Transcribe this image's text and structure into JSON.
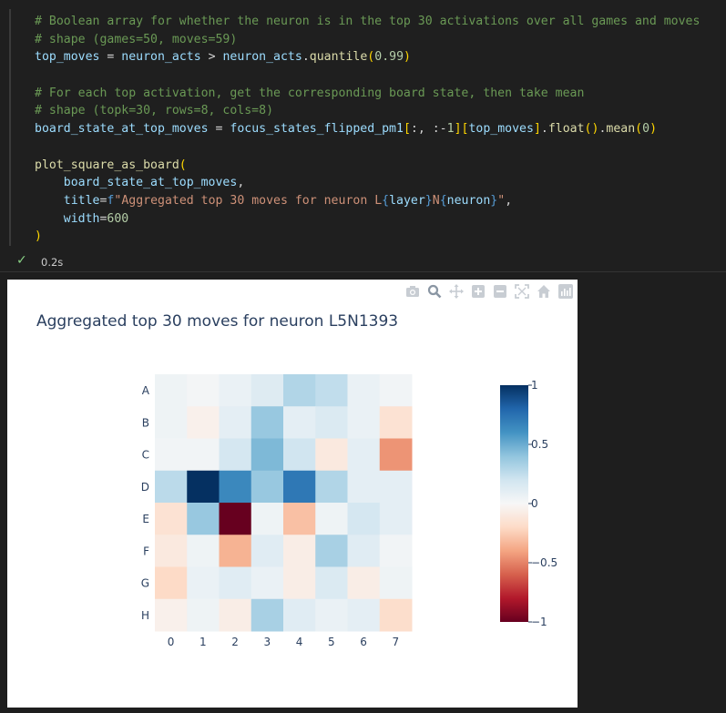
{
  "code": {
    "lines": [
      [
        [
          "c",
          "# Boolean array for whether the neuron is in the top 30 activations over all games and moves"
        ]
      ],
      [
        [
          "c",
          "# shape (games=50, moves=59)"
        ]
      ],
      [
        [
          "v",
          "top_moves"
        ],
        [
          "op",
          " = "
        ],
        [
          "v",
          "neuron_acts"
        ],
        [
          "op",
          " > "
        ],
        [
          "v",
          "neuron_acts"
        ],
        [
          "op",
          "."
        ],
        [
          "f",
          "quantile"
        ],
        [
          "p1",
          "("
        ],
        [
          "n",
          "0.99"
        ],
        [
          "p1",
          ")"
        ]
      ],
      [],
      [
        [
          "c",
          "# For each top activation, get the corresponding board state, then take mean"
        ]
      ],
      [
        [
          "c",
          "# shape (topk=30, rows=8, cols=8)"
        ]
      ],
      [
        [
          "v",
          "board_state_at_top_moves"
        ],
        [
          "op",
          " = "
        ],
        [
          "v",
          "focus_states_flipped_pm1"
        ],
        [
          "p1",
          "["
        ],
        [
          "op",
          ":, :-"
        ],
        [
          "n",
          "1"
        ],
        [
          "p1",
          "]"
        ],
        [
          "p1",
          "["
        ],
        [
          "v",
          "top_moves"
        ],
        [
          "p1",
          "]"
        ],
        [
          "op",
          "."
        ],
        [
          "f",
          "float"
        ],
        [
          "p1",
          "()"
        ],
        [
          "op",
          "."
        ],
        [
          "f",
          "mean"
        ],
        [
          "p1",
          "("
        ],
        [
          "n",
          "0"
        ],
        [
          "p1",
          ")"
        ]
      ],
      [],
      [
        [
          "f",
          "plot_square_as_board"
        ],
        [
          "p1",
          "("
        ]
      ],
      [
        [
          "op",
          "    "
        ],
        [
          "v",
          "board_state_at_top_moves"
        ],
        [
          "op",
          ","
        ]
      ],
      [
        [
          "op",
          "    "
        ],
        [
          "v",
          "title"
        ],
        [
          "op",
          "="
        ],
        [
          "k",
          "f"
        ],
        [
          "s",
          "\"Aggregated top 30 moves for neuron L"
        ],
        [
          "k",
          "{"
        ],
        [
          "v",
          "layer"
        ],
        [
          "k",
          "}"
        ],
        [
          "s",
          "N"
        ],
        [
          "k",
          "{"
        ],
        [
          "v",
          "neuron"
        ],
        [
          "k",
          "}"
        ],
        [
          "s",
          "\""
        ],
        [
          "op",
          ","
        ]
      ],
      [
        [
          "op",
          "    "
        ],
        [
          "v",
          "width"
        ],
        [
          "op",
          "="
        ],
        [
          "n",
          "600"
        ]
      ],
      [
        [
          "p1",
          ")"
        ]
      ]
    ]
  },
  "cell_status": {
    "check": "✓",
    "time": "0.2s"
  },
  "toolbar_icons": [
    "camera-icon",
    "zoom-icon",
    "pan-icon",
    "zoom-in-icon",
    "zoom-out-icon",
    "autoscale-icon",
    "reset-axes-icon",
    "plotly-logo-icon"
  ],
  "chart_data": {
    "type": "heatmap",
    "title": "Aggregated top 30 moves for neuron L5N1393",
    "rows": [
      "A",
      "B",
      "C",
      "D",
      "E",
      "F",
      "G",
      "H"
    ],
    "cols": [
      "0",
      "1",
      "2",
      "3",
      "4",
      "5",
      "6",
      "7"
    ],
    "values": [
      [
        0.05,
        0.02,
        0.07,
        0.13,
        0.3,
        0.25,
        0.07,
        0.03
      ],
      [
        0.05,
        -0.05,
        0.1,
        0.38,
        0.1,
        0.15,
        0.07,
        -0.15
      ],
      [
        0.03,
        0.03,
        0.18,
        0.45,
        0.2,
        -0.1,
        0.1,
        -0.45
      ],
      [
        0.27,
        1.0,
        0.65,
        0.38,
        0.72,
        0.3,
        0.1,
        0.1
      ],
      [
        -0.15,
        0.38,
        -1.0,
        0.05,
        -0.3,
        0.05,
        0.18,
        0.1
      ],
      [
        -0.1,
        0.05,
        -0.35,
        0.12,
        -0.07,
        0.33,
        0.12,
        0.03
      ],
      [
        -0.2,
        0.07,
        0.12,
        0.07,
        -0.07,
        0.15,
        -0.07,
        0.05
      ],
      [
        -0.05,
        0.05,
        -0.07,
        0.33,
        0.12,
        0.07,
        0.1,
        -0.18
      ]
    ],
    "zmin": -1,
    "zmax": 1,
    "colorscale": "RdBu",
    "colorbar_ticks": [
      {
        "value": 1,
        "label": "1"
      },
      {
        "value": 0.5,
        "label": "0.5"
      },
      {
        "value": 0,
        "label": "0"
      },
      {
        "value": -0.5,
        "label": "−0.5"
      },
      {
        "value": -1,
        "label": "−1"
      }
    ]
  }
}
